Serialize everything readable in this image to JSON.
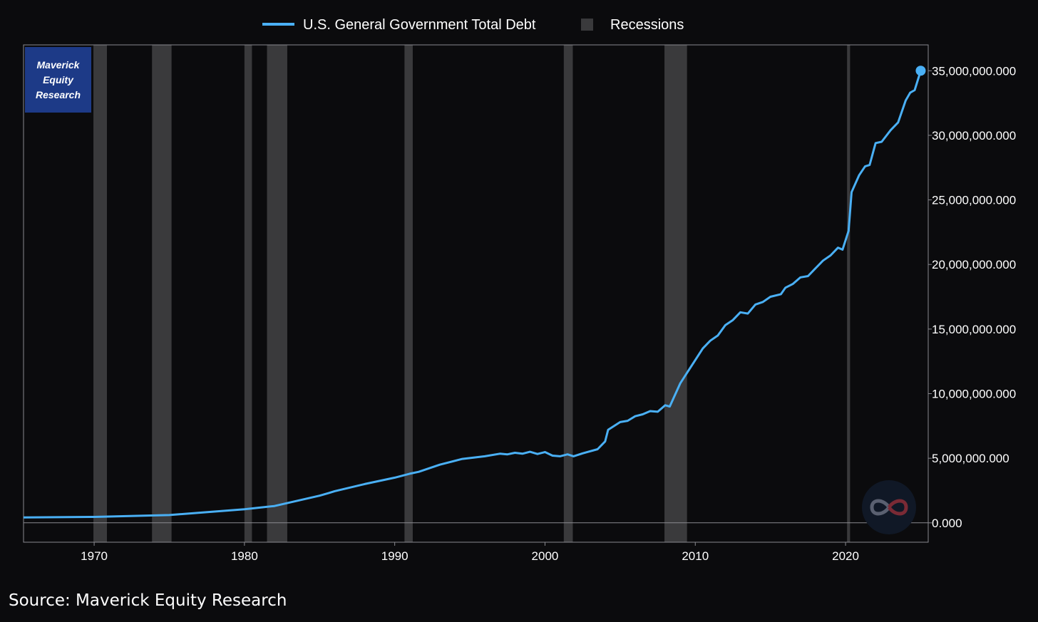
{
  "source_text": "Source: Maverick Equity Research",
  "badge": {
    "line1": "Maverick",
    "line2": "Equity",
    "line3": "Research"
  },
  "watermark_icon": "infinity-logo-icon",
  "colors": {
    "background": "#0b0b0d",
    "series": "#4ab0f5",
    "recession": "#3a3a3c",
    "axis": "#8a8a90",
    "badge": "#1d3a87"
  },
  "chart_data": {
    "type": "line",
    "legend": [
      {
        "label": "U.S. General Government Total Debt",
        "kind": "line"
      },
      {
        "label": "Recessions",
        "kind": "box"
      }
    ],
    "legend_position": "top-center",
    "x_axis": {
      "min": 1965.3,
      "max": 2025.5,
      "ticks": [
        1970,
        1980,
        1990,
        2000,
        2010,
        2020
      ]
    },
    "y_axis": {
      "side": "right",
      "min": -1500000000,
      "max": 37000000000,
      "ticks": [
        {
          "value": 0,
          "label": "0.000"
        },
        {
          "value": 5000000000,
          "label": "5,000,000.000"
        },
        {
          "value": 10000000000,
          "label": "10,000,000.000"
        },
        {
          "value": 15000000000,
          "label": "15,000,000.000"
        },
        {
          "value": 20000000000,
          "label": "20,000,000.000"
        },
        {
          "value": 25000000000,
          "label": "25,000,000.000"
        },
        {
          "value": 30000000000,
          "label": "30,000,000.000"
        },
        {
          "value": 35000000000,
          "label": "35,000,000.000"
        }
      ]
    },
    "grid": false,
    "recessions": [
      [
        1969.95,
        1970.85
      ],
      [
        1973.85,
        1975.15
      ],
      [
        1980.0,
        1980.5
      ],
      [
        1981.5,
        1982.85
      ],
      [
        1990.65,
        1991.2
      ],
      [
        2001.25,
        2001.85
      ],
      [
        2007.95,
        2009.45
      ],
      [
        2020.1,
        2020.3
      ]
    ],
    "series": [
      {
        "name": "U.S. General Government Total Debt",
        "end_marker": true,
        "points": [
          [
            1965.3,
            420000000
          ],
          [
            1970.0,
            460000000
          ],
          [
            1975.0,
            600000000
          ],
          [
            1980.0,
            1050000000
          ],
          [
            1982.0,
            1300000000
          ],
          [
            1985.0,
            2100000000
          ],
          [
            1985.6,
            2300000000
          ],
          [
            1986.0,
            2450000000
          ],
          [
            1988.0,
            3000000000
          ],
          [
            1990.0,
            3500000000
          ],
          [
            1991.0,
            3800000000
          ],
          [
            1991.6,
            3950000000
          ],
          [
            1993.0,
            4500000000
          ],
          [
            1994.5,
            4950000000
          ],
          [
            1996.0,
            5150000000
          ],
          [
            1997.0,
            5350000000
          ],
          [
            1997.5,
            5300000000
          ],
          [
            1998.0,
            5420000000
          ],
          [
            1998.5,
            5350000000
          ],
          [
            1999.0,
            5500000000
          ],
          [
            1999.5,
            5330000000
          ],
          [
            2000.0,
            5480000000
          ],
          [
            2000.5,
            5200000000
          ],
          [
            2001.0,
            5150000000
          ],
          [
            2001.5,
            5300000000
          ],
          [
            2001.9,
            5150000000
          ],
          [
            2002.5,
            5380000000
          ],
          [
            2003.5,
            5700000000
          ],
          [
            2004.0,
            6300000000
          ],
          [
            2004.2,
            7200000000
          ],
          [
            2005.0,
            7800000000
          ],
          [
            2005.5,
            7900000000
          ],
          [
            2006.0,
            8250000000
          ],
          [
            2006.5,
            8400000000
          ],
          [
            2007.0,
            8650000000
          ],
          [
            2007.5,
            8600000000
          ],
          [
            2008.0,
            9100000000
          ],
          [
            2008.3,
            9000000000
          ],
          [
            2009.0,
            10800000000
          ],
          [
            2009.5,
            11700000000
          ],
          [
            2010.5,
            13500000000
          ],
          [
            2011.0,
            14100000000
          ],
          [
            2011.5,
            14500000000
          ],
          [
            2012.0,
            15300000000
          ],
          [
            2012.5,
            15700000000
          ],
          [
            2013.0,
            16300000000
          ],
          [
            2013.5,
            16200000000
          ],
          [
            2014.0,
            16900000000
          ],
          [
            2014.5,
            17100000000
          ],
          [
            2015.0,
            17500000000
          ],
          [
            2015.7,
            17700000000
          ],
          [
            2016.0,
            18200000000
          ],
          [
            2016.5,
            18500000000
          ],
          [
            2017.0,
            19000000000
          ],
          [
            2017.5,
            19100000000
          ],
          [
            2018.0,
            19700000000
          ],
          [
            2018.5,
            20300000000
          ],
          [
            2019.0,
            20700000000
          ],
          [
            2019.5,
            21300000000
          ],
          [
            2019.8,
            21150000000
          ],
          [
            2020.2,
            22600000000
          ],
          [
            2020.4,
            25600000000
          ],
          [
            2020.9,
            26900000000
          ],
          [
            2021.3,
            27600000000
          ],
          [
            2021.6,
            27700000000
          ],
          [
            2022.0,
            29400000000
          ],
          [
            2022.4,
            29500000000
          ],
          [
            2023.0,
            30400000000
          ],
          [
            2023.5,
            31000000000
          ],
          [
            2024.0,
            32700000000
          ],
          [
            2024.3,
            33300000000
          ],
          [
            2024.6,
            33500000000
          ],
          [
            2025.0,
            35000000000
          ]
        ]
      }
    ]
  }
}
